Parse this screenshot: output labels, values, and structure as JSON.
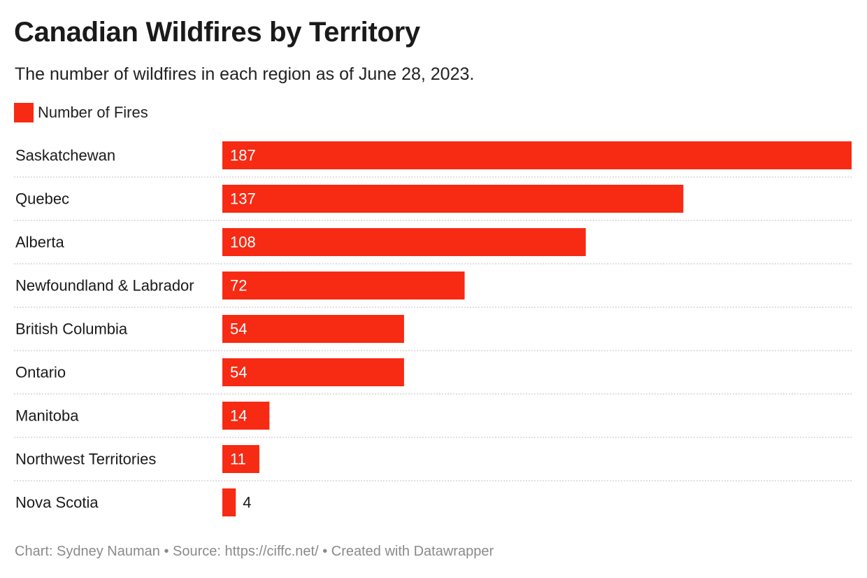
{
  "title": "Canadian Wildfires by Territory",
  "subtitle": "The number of wildfires in each region as of June 28, 2023.",
  "legend": {
    "label": "Number of Fires"
  },
  "footer": {
    "credit": "Chart: Sydney Nauman",
    "source": "Source: https://ciffc.net/",
    "tool": "Created with Datawrapper",
    "separator": " • "
  },
  "colors": {
    "bar": "#f72a14",
    "label_inside": "#ffffff",
    "label_outside": "#1a1a1a",
    "divider": "#cccccc"
  },
  "chart_data": {
    "type": "bar",
    "orientation": "horizontal",
    "categories": [
      "Saskatchewan",
      "Quebec",
      "Alberta",
      "Newfoundland & Labrador",
      "British Columbia",
      "Ontario",
      "Manitoba",
      "Northwest Territories",
      "Nova Scotia"
    ],
    "series": [
      {
        "name": "Number of Fires",
        "values": [
          187,
          137,
          108,
          72,
          54,
          54,
          14,
          11,
          4
        ]
      }
    ],
    "xlim": [
      0,
      187
    ],
    "grid": false,
    "legend_position": "top-left",
    "data_labels": true
  }
}
